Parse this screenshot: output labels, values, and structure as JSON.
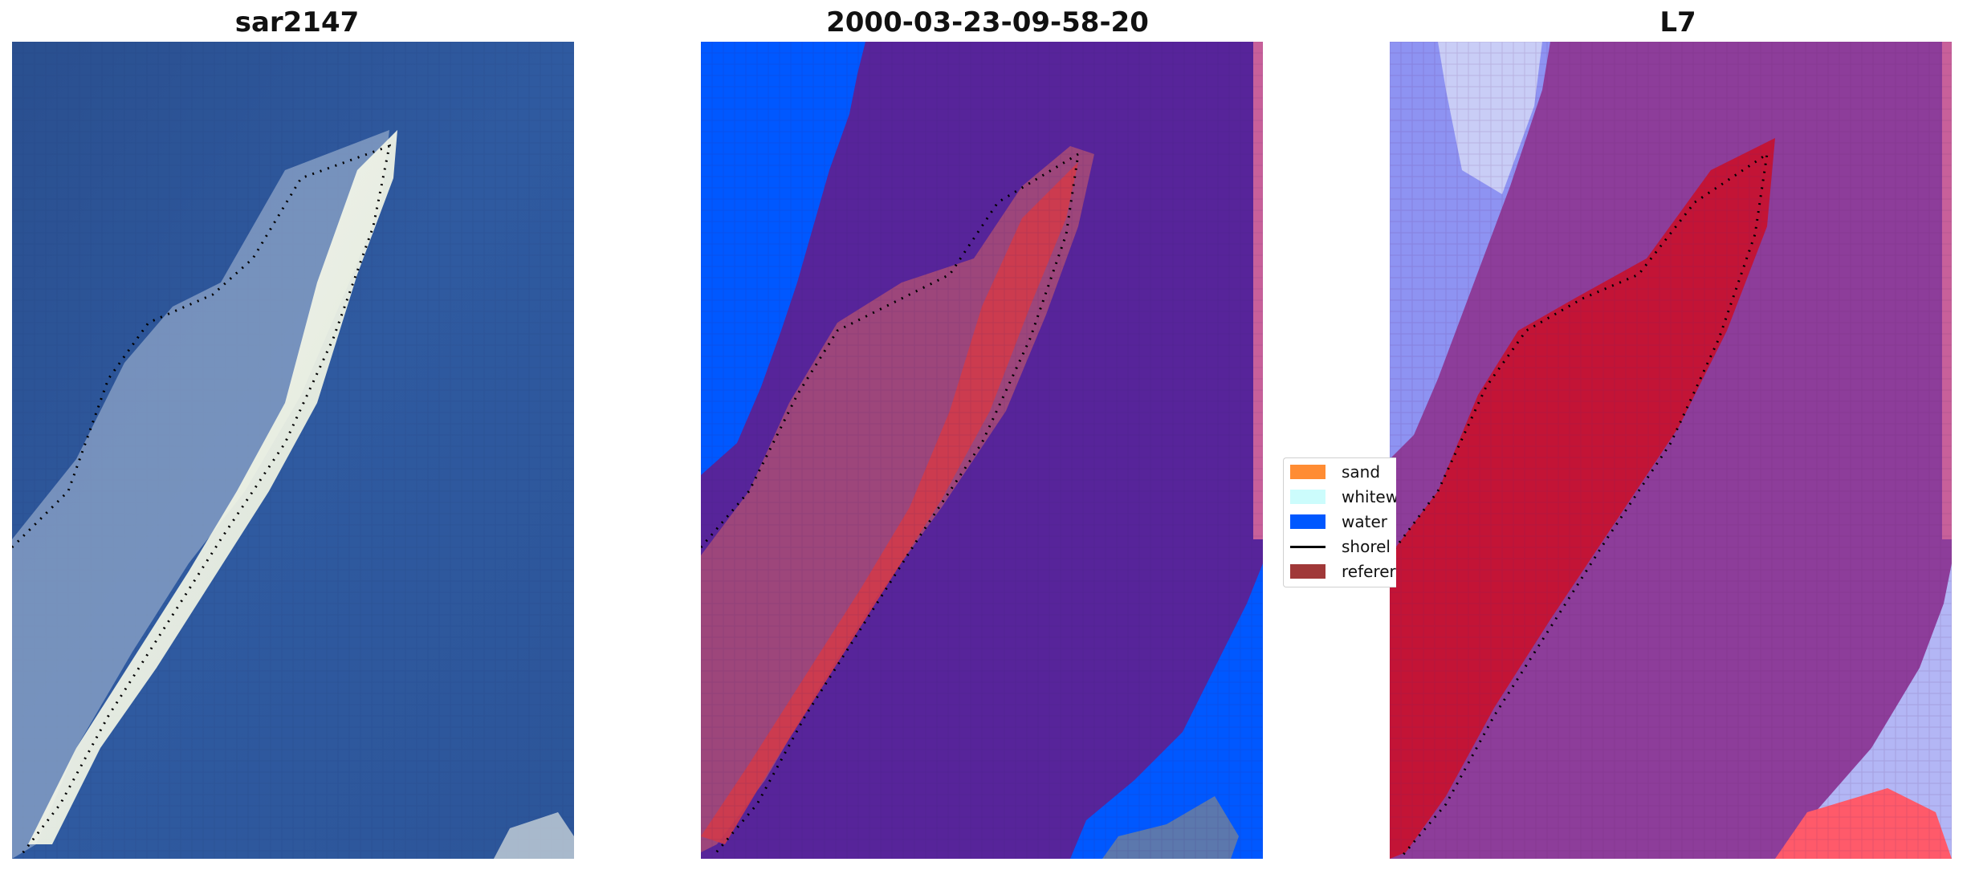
{
  "panels": [
    {
      "title": "sar2147"
    },
    {
      "title": "2000-03-23-09-58-20"
    },
    {
      "title": "L7"
    }
  ],
  "legend": {
    "items": [
      {
        "label": "sand",
        "color": "#ff8c33"
      },
      {
        "label": "whitew",
        "color": "#ccfcfc"
      },
      {
        "label": "water",
        "color": "#0058ff"
      },
      {
        "label": "shorel",
        "color": "#000000"
      },
      {
        "label": "referer",
        "color": "#a03838"
      }
    ]
  },
  "colors": {
    "rgb_water": "#2f5a9c",
    "rgb_sand": "#f3f3e4",
    "classified_other": "#57249a",
    "classified_water": "#0058ff",
    "classified_reference": "#a03838",
    "l7_land": "#c8102e",
    "l7_background": "#8d3d9a",
    "l7_water": "#8e93f2"
  }
}
